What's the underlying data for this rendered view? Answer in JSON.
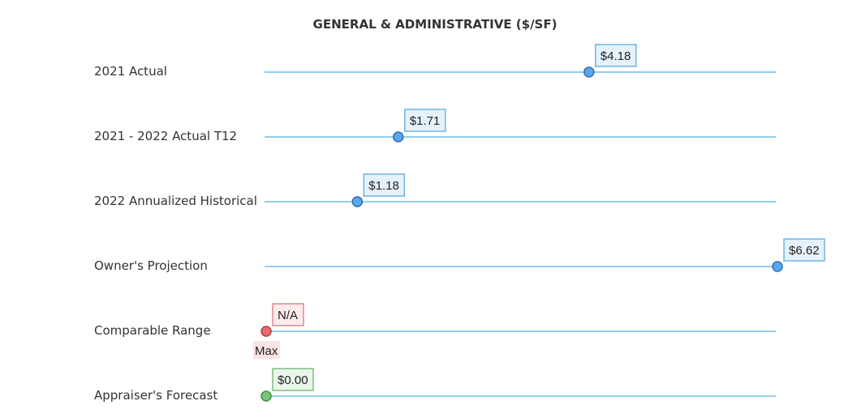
{
  "chart_data": {
    "type": "dot-range",
    "title": "GENERAL & ADMINISTRATIVE ($/SF)",
    "xlim": [
      0,
      6.62
    ],
    "grid": false,
    "rows": [
      {
        "label": "2021 Actual",
        "value": 4.18,
        "value_label": "$4.18",
        "kind": "actual"
      },
      {
        "label": "2021 - 2022 Actual T12",
        "value": 1.71,
        "value_label": "$1.71",
        "kind": "actual"
      },
      {
        "label": "2022 Annualized Historical",
        "value": 1.18,
        "value_label": "$1.18",
        "kind": "actual"
      },
      {
        "label": "Owner's Projection",
        "value": 6.62,
        "value_label": "$6.62",
        "kind": "actual"
      },
      {
        "label": "Comparable Range",
        "value": 0,
        "value_label": "N/A",
        "kind": "comparable",
        "sub_label": "Max"
      },
      {
        "label": "Appraiser's Forecast",
        "value": 0,
        "value_label": "$0.00",
        "kind": "forecast"
      }
    ]
  },
  "colors": {
    "line": "#8fd0ef",
    "actual_fill": "#5aa7ec",
    "actual_stroke": "#2f6fb0",
    "actual_box_fill": "#e6f2fb",
    "actual_box_stroke": "#6fb4e0",
    "comparable_fill": "#e46d6d",
    "comparable_stroke": "#b53c3c",
    "comparable_box_fill": "#fcebeb",
    "comparable_box_stroke": "#e08a8a",
    "comparable_sub_fill": "#fbe3e3",
    "forecast_fill": "#7cc37c",
    "forecast_stroke": "#3f8f3f",
    "forecast_box_fill": "#eaf6ea",
    "forecast_box_stroke": "#7cbf7c"
  }
}
